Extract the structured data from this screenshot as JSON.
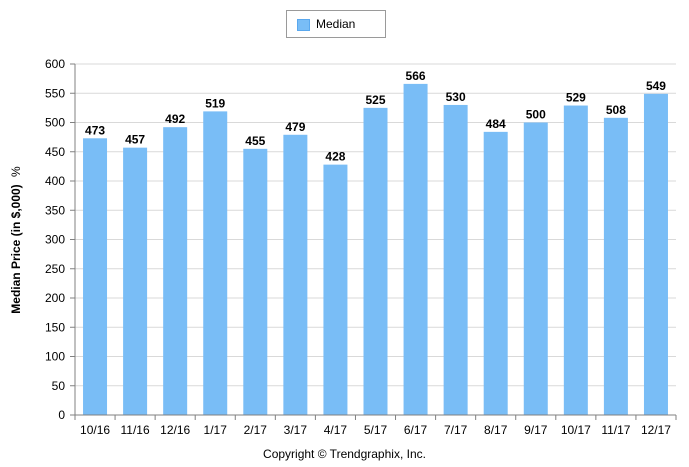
{
  "chart_data": {
    "type": "bar",
    "categories": [
      "10/16",
      "11/16",
      "12/16",
      "1/17",
      "2/17",
      "3/17",
      "4/17",
      "5/17",
      "6/17",
      "7/17",
      "8/17",
      "9/17",
      "10/17",
      "11/17",
      "12/17"
    ],
    "series": [
      {
        "name": "Median",
        "values": [
          473,
          457,
          492,
          519,
          455,
          479,
          428,
          525,
          566,
          530,
          484,
          500,
          529,
          508,
          549
        ],
        "color": "#79bdf6"
      }
    ],
    "ylabel_main": "Median Price (in $,000)",
    "ylabel_unit": "%",
    "xlabel": "",
    "ylim": [
      0,
      600
    ],
    "yticks": [
      0,
      50,
      100,
      150,
      200,
      250,
      300,
      350,
      400,
      450,
      500,
      550,
      600
    ],
    "grid": true,
    "legend": "top-center",
    "data_labels": true
  },
  "footer": {
    "copyright": "Copyright © Trendgraphix, Inc."
  },
  "colors": {
    "bar": "#79bdf6",
    "grid": "#d9d9d9",
    "axis": "#808080"
  }
}
